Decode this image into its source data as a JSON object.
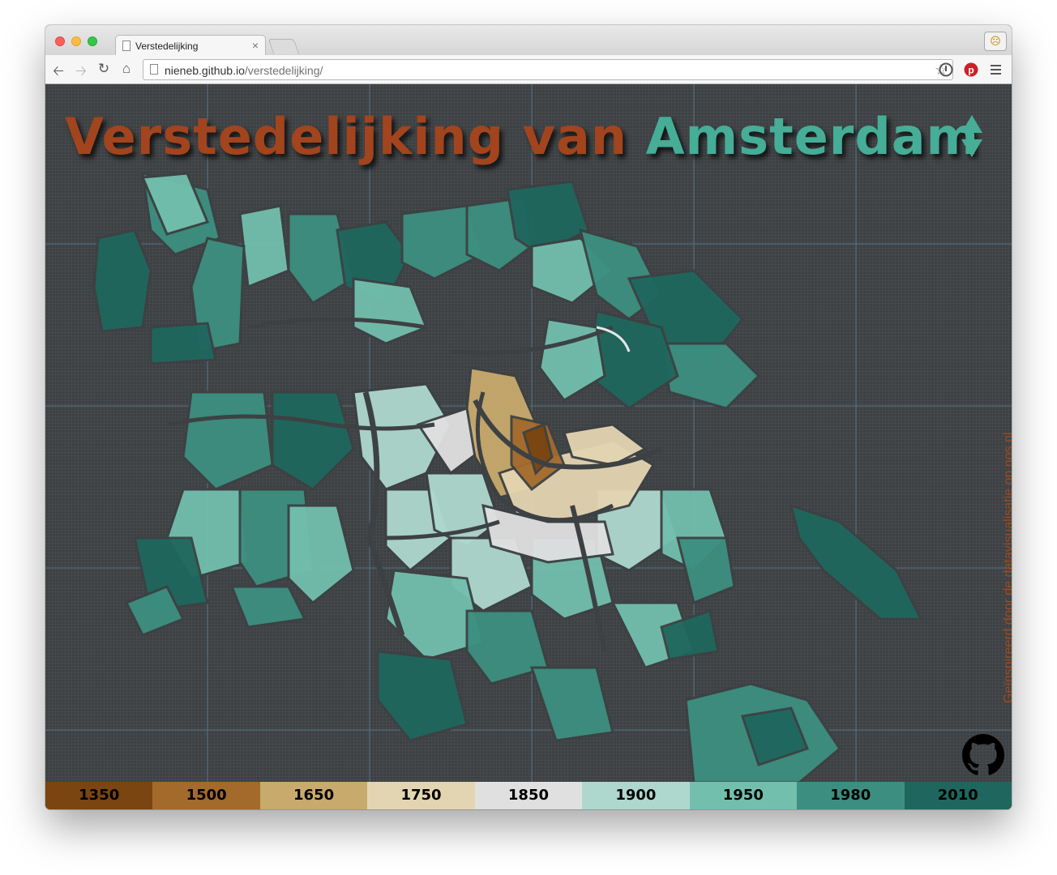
{
  "browser": {
    "tab_title": "Verstedelijking",
    "tab_close": "×",
    "url_host": "nieneb.github.io",
    "url_path": "/verstedelijking/",
    "icons": [
      "back-icon",
      "forward-icon",
      "reload-icon",
      "home-icon",
      "page-icon",
      "bookmark-star-icon",
      "extension-icon",
      "pinterest-icon",
      "menu-icon",
      "profile-icon"
    ]
  },
  "header": {
    "title_part1": "Verstedelijking van",
    "title_part2": "Amsterdam"
  },
  "credit": {
    "text": "Geïnspireerd door de datavisualisatie op nos.nl"
  },
  "legend": {
    "items": [
      {
        "label": "1350",
        "color": "#7a4511"
      },
      {
        "label": "1500",
        "color": "#a36a2c"
      },
      {
        "label": "1650",
        "color": "#c8aa6c"
      },
      {
        "label": "1750",
        "color": "#e4d5b2"
      },
      {
        "label": "1850",
        "color": "#e0e0e0"
      },
      {
        "label": "1900",
        "color": "#aed8ce"
      },
      {
        "label": "1950",
        "color": "#72bfae"
      },
      {
        "label": "1980",
        "color": "#3c8f80"
      },
      {
        "label": "2010",
        "color": "#1f675e"
      }
    ]
  },
  "colors": {
    "background": "#3d4143",
    "title_orange": "#a2441d",
    "title_teal": "#46ad97",
    "arrow_teal": "#46ad97",
    "grid_line": "#5c7f9a"
  }
}
